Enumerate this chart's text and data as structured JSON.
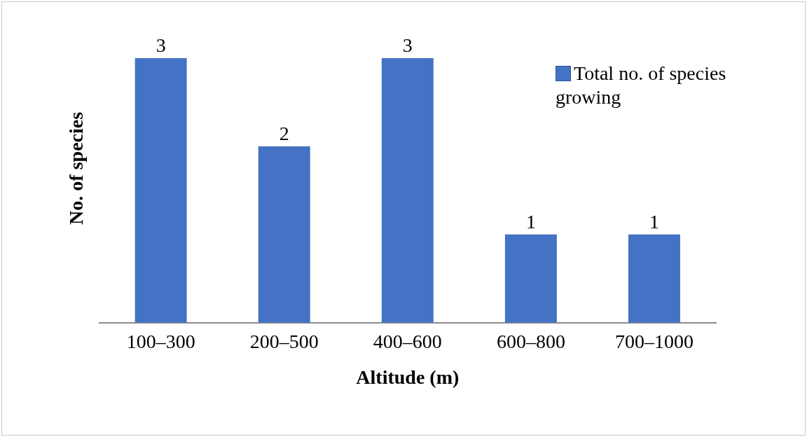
{
  "chart_data": {
    "type": "bar",
    "xlabel": "Altitude (m)",
    "ylabel": "No. of species",
    "categories": [
      "100–300",
      "200–500",
      "400–600",
      "600–800",
      "700–1000"
    ],
    "series": [
      {
        "name": "Total no. of species growing",
        "color": "#4472c4",
        "values": [
          3,
          2,
          3,
          1,
          1
        ]
      }
    ],
    "data_labels": true,
    "legend": "top right",
    "grid": false
  }
}
